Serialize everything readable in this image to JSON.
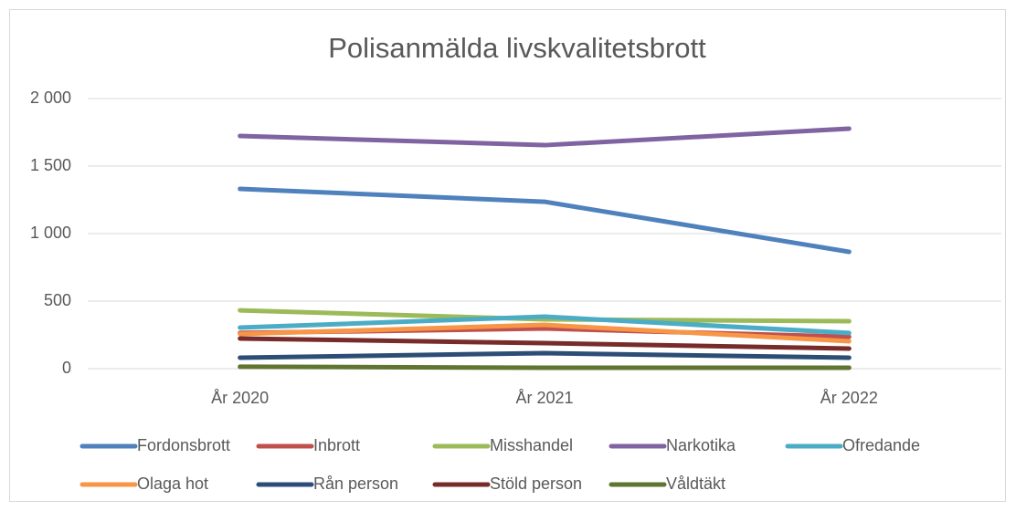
{
  "chart_data": {
    "type": "line",
    "title": "Polisanmälda livskvalitetsbrott",
    "categories": [
      "År 2020",
      "År 2021",
      "År 2022"
    ],
    "series": [
      {
        "name": "Fordonsbrott",
        "color": "#4f81bd",
        "values": [
          1331,
          1236,
          865
        ]
      },
      {
        "name": "Inbrott",
        "color": "#c0504d",
        "values": [
          264,
          297,
          236
        ]
      },
      {
        "name": "Misshandel",
        "color": "#9bbb59",
        "values": [
          432,
          365,
          351
        ]
      },
      {
        "name": "Narkotika",
        "color": "#8064a2",
        "values": [
          1723,
          1655,
          1777
        ]
      },
      {
        "name": "Ofredande",
        "color": "#4bacc6",
        "values": [
          304,
          385,
          264
        ]
      },
      {
        "name": "Olaga hot",
        "color": "#f79646",
        "values": [
          257,
          324,
          203
        ]
      },
      {
        "name": "Rån person",
        "color": "#2c4d75",
        "values": [
          81,
          115,
          81
        ]
      },
      {
        "name": "Stöld person",
        "color": "#772c2a",
        "values": [
          223,
          189,
          149
        ]
      },
      {
        "name": "Våldtäkt",
        "color": "#5f7530",
        "values": [
          14,
          7,
          7
        ]
      }
    ],
    "ylim": [
      0,
      2000
    ],
    "yticks": [
      0,
      500,
      {
        "value": 1000,
        "label": "1 000"
      },
      {
        "value": 1500,
        "label": "1 500"
      },
      {
        "value": 2000,
        "label": "2 000"
      }
    ],
    "grid": true,
    "legend": "bottom"
  }
}
